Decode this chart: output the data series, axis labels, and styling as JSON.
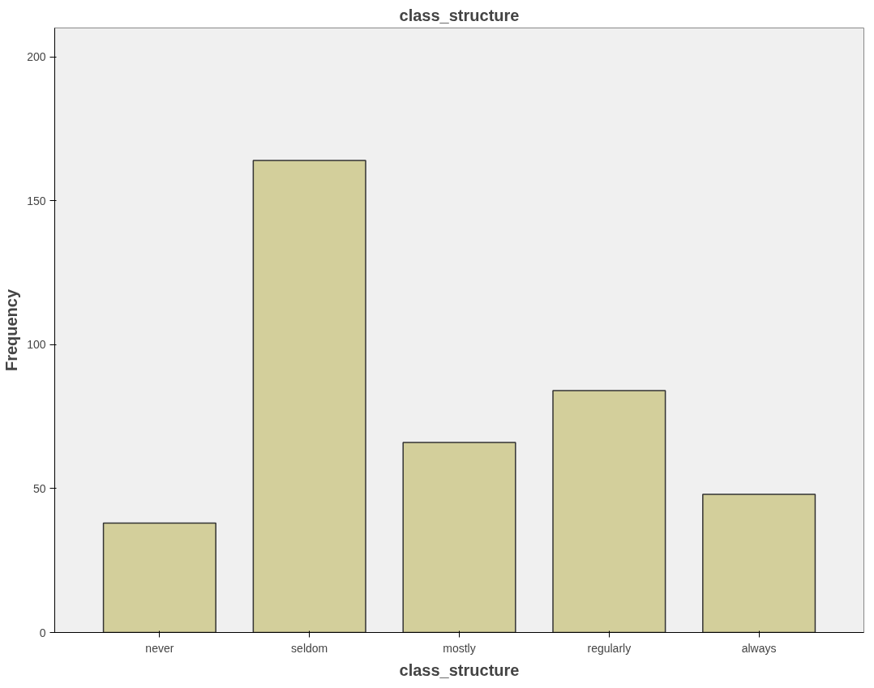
{
  "chart_data": {
    "type": "bar",
    "title": "class_structure",
    "xlabel": "class_structure",
    "ylabel": "Frequency",
    "categories": [
      "never",
      "seldom",
      "mostly",
      "regularly",
      "always"
    ],
    "values": [
      38,
      164,
      66,
      84,
      48
    ],
    "color": "#d3cf9b",
    "ylim": [
      0,
      210
    ],
    "yticks": [
      0,
      50,
      100,
      150,
      200
    ],
    "grid": false
  }
}
